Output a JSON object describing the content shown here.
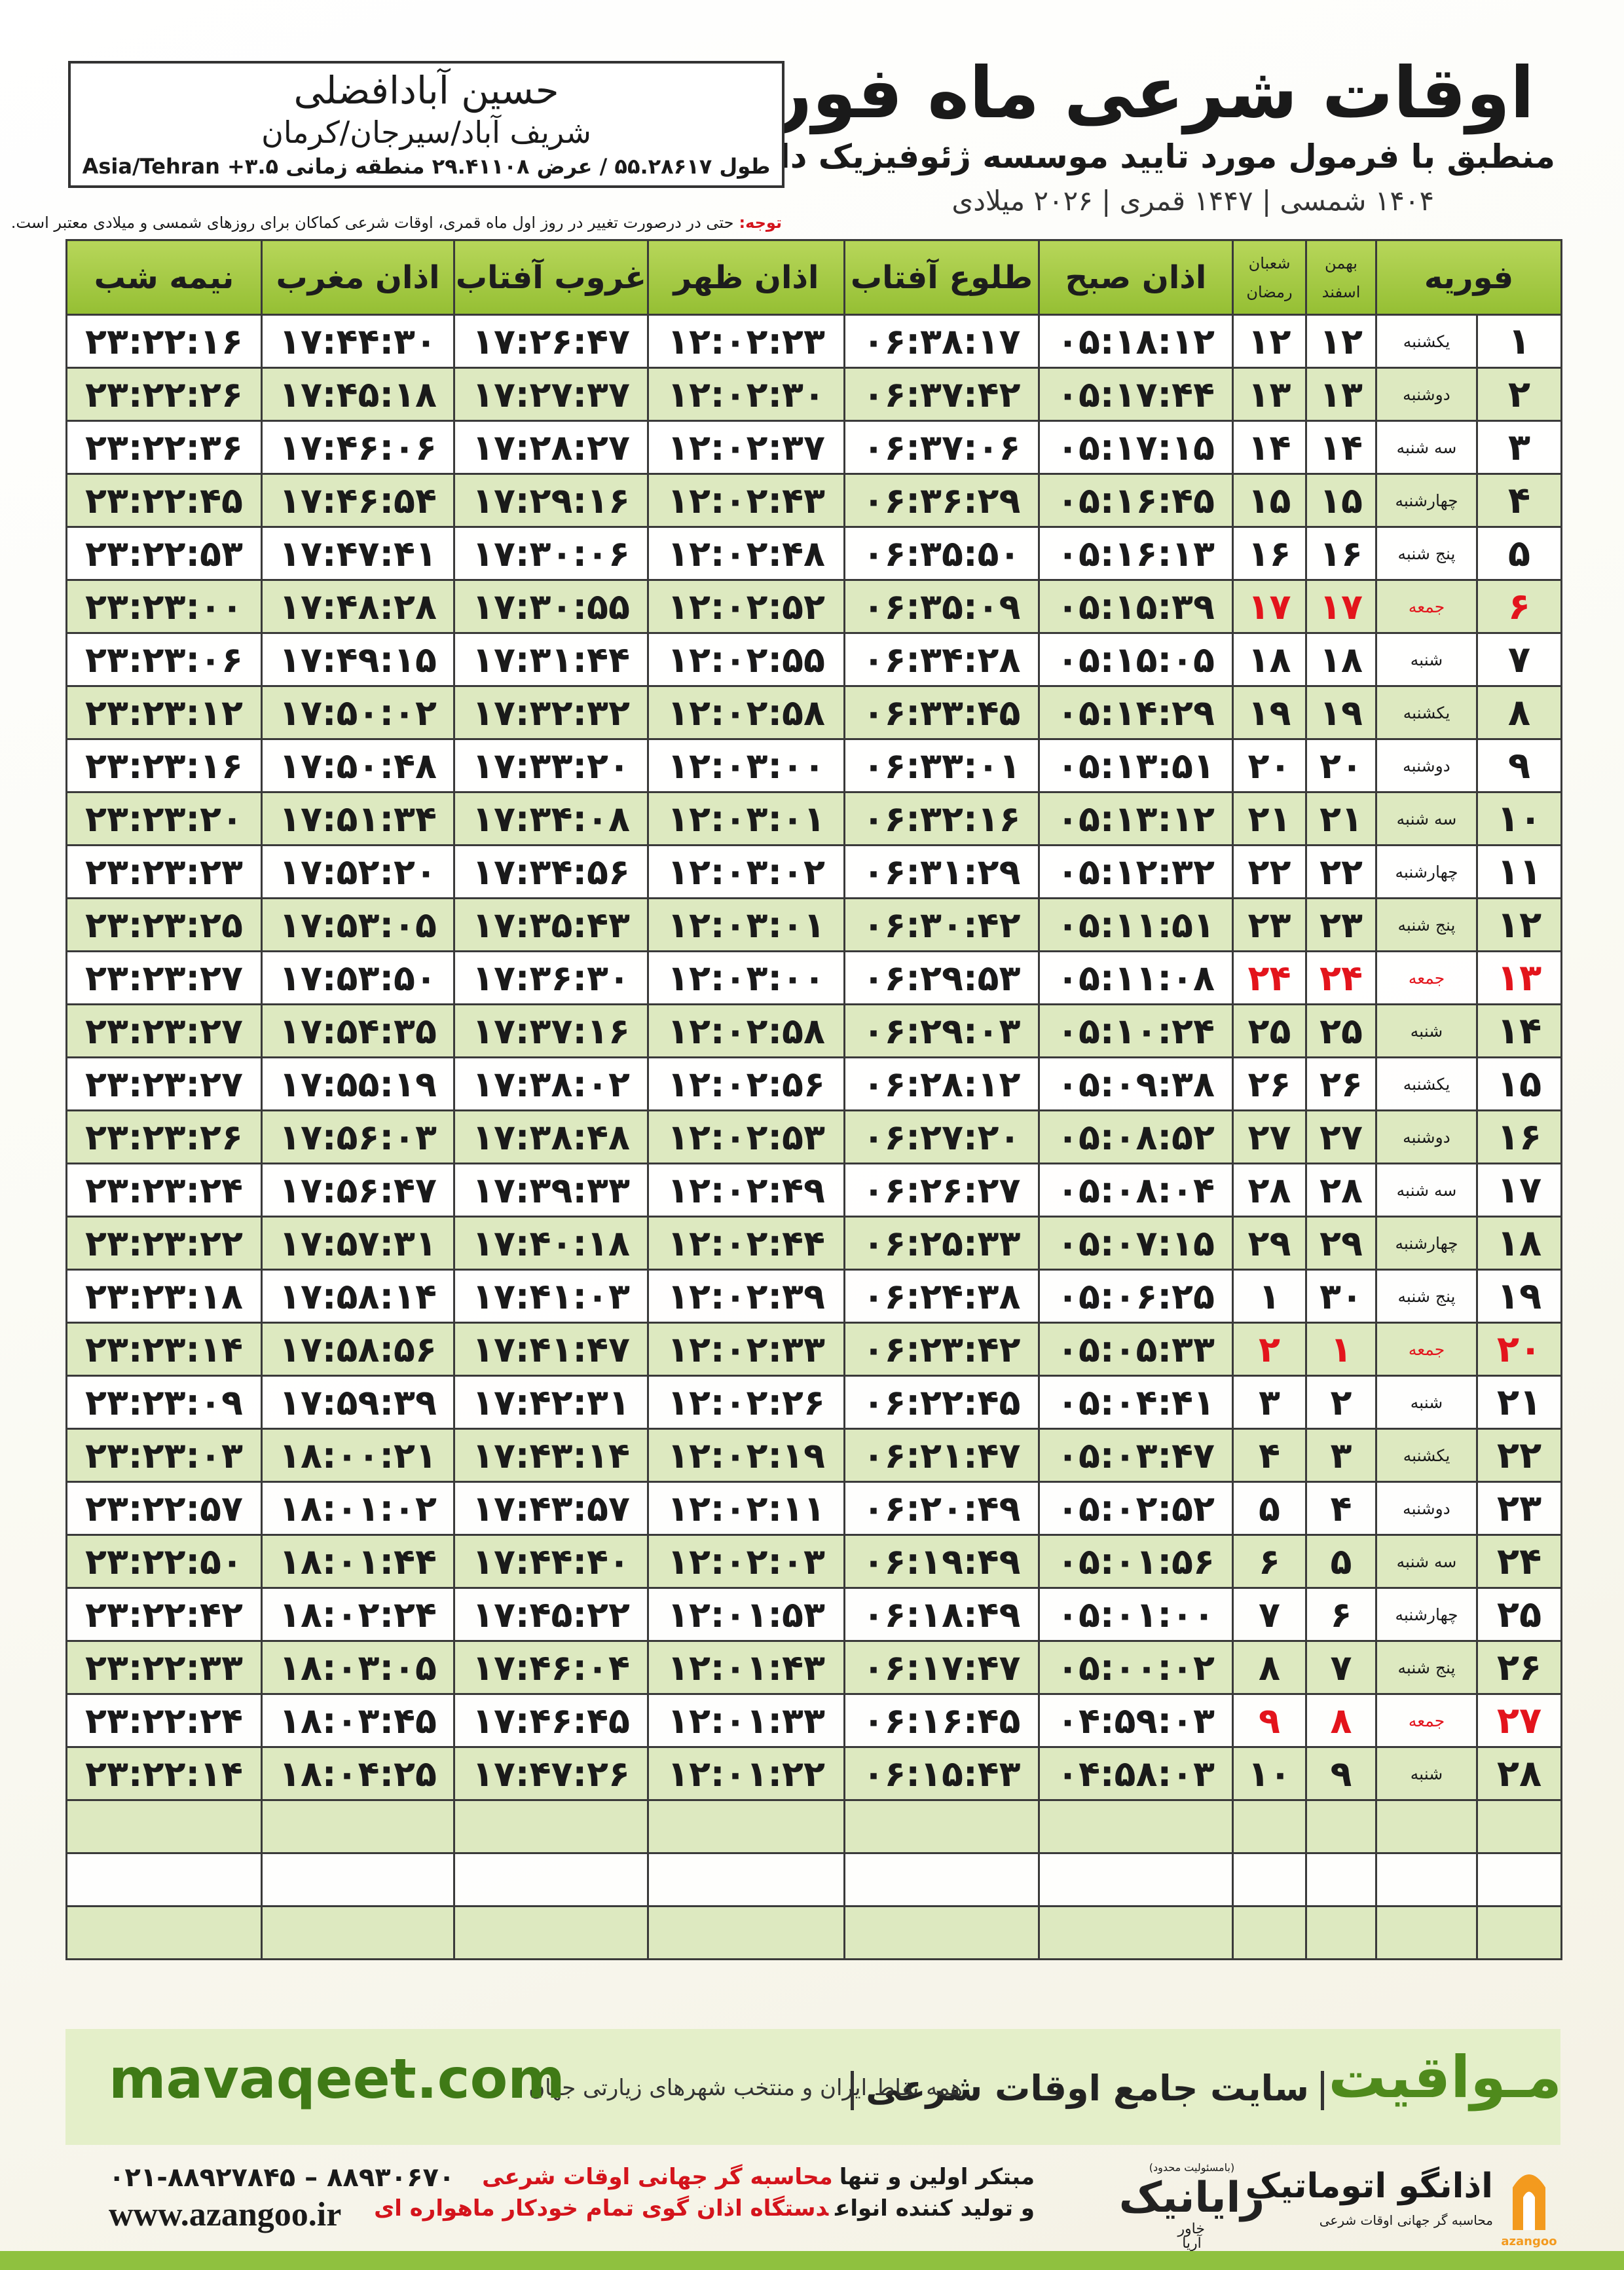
{
  "header": {
    "title": "اوقات شرعی ماه فوریه",
    "subtitle": "منطبق با فرمول مورد تایید موسسه ژئوفیزیک دانشگاه تهران",
    "dates": "۱۴۰۴ شمسی | ۱۴۴۷ قمری | ۲۰۲۶ میلادی"
  },
  "location": {
    "name": "حسین آبادافضلی",
    "place": "شریف آباد/سیرجان/کرمان",
    "coords": "طول ۵۵.۲۸۶۱۷ / عرض ۲۹.۴۱۱۰۸ منطقه زمانی ۳.۵+ Asia/Tehran"
  },
  "note": {
    "label": "توجه:",
    "text": "حتی در درصورت تغییر در روز اول ماه قمری، اوقات شرعی کماکان برای روزهای شمسی و میلادی معتبر است."
  },
  "table": {
    "columns": [
      "فوریه",
      [
        "بهمن",
        "اسفند"
      ],
      [
        "شعبان",
        "رمضان"
      ],
      "اذان صبح",
      "طلوع آفتاب",
      "اذان ظهر",
      "غروب آفتاب",
      "اذان مغرب",
      "نیمه شب"
    ],
    "rows": [
      {
        "cells": [
          "۱",
          "یکشنبه",
          "۱۲",
          "۱۲",
          "۰۵:۱۸:۱۲",
          "۰۶:۳۸:۱۷",
          "۱۲:۰۲:۲۳",
          "۱۷:۲۶:۴۷",
          "۱۷:۴۴:۳۰",
          "۲۳:۲۲:۱۶"
        ]
      },
      {
        "cells": [
          "۲",
          "دوشنبه",
          "۱۳",
          "۱۳",
          "۰۵:۱۷:۴۴",
          "۰۶:۳۷:۴۲",
          "۱۲:۰۲:۳۰",
          "۱۷:۲۷:۳۷",
          "۱۷:۴۵:۱۸",
          "۲۳:۲۲:۲۶"
        ]
      },
      {
        "cells": [
          "۳",
          "سه شنبه",
          "۱۴",
          "۱۴",
          "۰۵:۱۷:۱۵",
          "۰۶:۳۷:۰۶",
          "۱۲:۰۲:۳۷",
          "۱۷:۲۸:۲۷",
          "۱۷:۴۶:۰۶",
          "۲۳:۲۲:۳۶"
        ]
      },
      {
        "cells": [
          "۴",
          "چهارشنبه",
          "۱۵",
          "۱۵",
          "۰۵:۱۶:۴۵",
          "۰۶:۳۶:۲۹",
          "۱۲:۰۲:۴۳",
          "۱۷:۲۹:۱۶",
          "۱۷:۴۶:۵۴",
          "۲۳:۲۲:۴۵"
        ]
      },
      {
        "cells": [
          "۵",
          "پنج شنبه",
          "۱۶",
          "۱۶",
          "۰۵:۱۶:۱۳",
          "۰۶:۳۵:۵۰",
          "۱۲:۰۲:۴۸",
          "۱۷:۳۰:۰۶",
          "۱۷:۴۷:۴۱",
          "۲۳:۲۲:۵۳"
        ]
      },
      {
        "cells": [
          "۶",
          "جمعه",
          "۱۷",
          "۱۷",
          "۰۵:۱۵:۳۹",
          "۰۶:۳۵:۰۹",
          "۱۲:۰۲:۵۲",
          "۱۷:۳۰:۵۵",
          "۱۷:۴۸:۲۸",
          "۲۳:۲۳:۰۰"
        ],
        "color": "#e3141c"
      },
      {
        "cells": [
          "۷",
          "شنبه",
          "۱۸",
          "۱۸",
          "۰۵:۱۵:۰۵",
          "۰۶:۳۴:۲۸",
          "۱۲:۰۲:۵۵",
          "۱۷:۳۱:۴۴",
          "۱۷:۴۹:۱۵",
          "۲۳:۲۳:۰۶"
        ]
      },
      {
        "cells": [
          "۸",
          "یکشنبه",
          "۱۹",
          "۱۹",
          "۰۵:۱۴:۲۹",
          "۰۶:۳۳:۴۵",
          "۱۲:۰۲:۵۸",
          "۱۷:۳۲:۳۲",
          "۱۷:۵۰:۰۲",
          "۲۳:۲۳:۱۲"
        ]
      },
      {
        "cells": [
          "۹",
          "دوشنبه",
          "۲۰",
          "۲۰",
          "۰۵:۱۳:۵۱",
          "۰۶:۳۳:۰۱",
          "۱۲:۰۳:۰۰",
          "۱۷:۳۳:۲۰",
          "۱۷:۵۰:۴۸",
          "۲۳:۲۳:۱۶"
        ]
      },
      {
        "cells": [
          "۱۰",
          "سه شنبه",
          "۲۱",
          "۲۱",
          "۰۵:۱۳:۱۲",
          "۰۶:۳۲:۱۶",
          "۱۲:۰۳:۰۱",
          "۱۷:۳۴:۰۸",
          "۱۷:۵۱:۳۴",
          "۲۳:۲۳:۲۰"
        ]
      },
      {
        "cells": [
          "۱۱",
          "چهارشنبه",
          "۲۲",
          "۲۲",
          "۰۵:۱۲:۳۲",
          "۰۶:۳۱:۲۹",
          "۱۲:۰۳:۰۲",
          "۱۷:۳۴:۵۶",
          "۱۷:۵۲:۲۰",
          "۲۳:۲۳:۲۳"
        ]
      },
      {
        "cells": [
          "۱۲",
          "پنج شنبه",
          "۲۳",
          "۲۳",
          "۰۵:۱۱:۵۱",
          "۰۶:۳۰:۴۲",
          "۱۲:۰۳:۰۱",
          "۱۷:۳۵:۴۳",
          "۱۷:۵۳:۰۵",
          "۲۳:۲۳:۲۵"
        ]
      },
      {
        "cells": [
          "۱۳",
          "جمعه",
          "۲۴",
          "۲۴",
          "۰۵:۱۱:۰۸",
          "۰۶:۲۹:۵۳",
          "۱۲:۰۳:۰۰",
          "۱۷:۳۶:۳۰",
          "۱۷:۵۳:۵۰",
          "۲۳:۲۳:۲۷"
        ],
        "color": "#e3141c"
      },
      {
        "cells": [
          "۱۴",
          "شنبه",
          "۲۵",
          "۲۵",
          "۰۵:۱۰:۲۴",
          "۰۶:۲۹:۰۳",
          "۱۲:۰۲:۵۸",
          "۱۷:۳۷:۱۶",
          "۱۷:۵۴:۳۵",
          "۲۳:۲۳:۲۷"
        ]
      },
      {
        "cells": [
          "۱۵",
          "یکشنبه",
          "۲۶",
          "۲۶",
          "۰۵:۰۹:۳۸",
          "۰۶:۲۸:۱۲",
          "۱۲:۰۲:۵۶",
          "۱۷:۳۸:۰۲",
          "۱۷:۵۵:۱۹",
          "۲۳:۲۳:۲۷"
        ]
      },
      {
        "cells": [
          "۱۶",
          "دوشنبه",
          "۲۷",
          "۲۷",
          "۰۵:۰۸:۵۲",
          "۰۶:۲۷:۲۰",
          "۱۲:۰۲:۵۳",
          "۱۷:۳۸:۴۸",
          "۱۷:۵۶:۰۳",
          "۲۳:۲۳:۲۶"
        ]
      },
      {
        "cells": [
          "۱۷",
          "سه شنبه",
          "۲۸",
          "۲۸",
          "۰۵:۰۸:۰۴",
          "۰۶:۲۶:۲۷",
          "۱۲:۰۲:۴۹",
          "۱۷:۳۹:۳۳",
          "۱۷:۵۶:۴۷",
          "۲۳:۲۳:۲۴"
        ]
      },
      {
        "cells": [
          "۱۸",
          "چهارشنبه",
          "۲۹",
          "۲۹",
          "۰۵:۰۷:۱۵",
          "۰۶:۲۵:۳۳",
          "۱۲:۰۲:۴۴",
          "۱۷:۴۰:۱۸",
          "۱۷:۵۷:۳۱",
          "۲۳:۲۳:۲۲"
        ]
      },
      {
        "cells": [
          "۱۹",
          "پنج شنبه",
          "۳۰",
          "۱",
          "۰۵:۰۶:۲۵",
          "۰۶:۲۴:۳۸",
          "۱۲:۰۲:۳۹",
          "۱۷:۴۱:۰۳",
          "۱۷:۵۸:۱۴",
          "۲۳:۲۳:۱۸"
        ]
      },
      {
        "cells": [
          "۲۰",
          "جمعه",
          "۱",
          "۲",
          "۰۵:۰۵:۳۳",
          "۰۶:۲۳:۴۲",
          "۱۲:۰۲:۳۳",
          "۱۷:۴۱:۴۷",
          "۱۷:۵۸:۵۶",
          "۲۳:۲۳:۱۴"
        ],
        "color": "#e3141c"
      },
      {
        "cells": [
          "۲۱",
          "شنبه",
          "۲",
          "۳",
          "۰۵:۰۴:۴۱",
          "۰۶:۲۲:۴۵",
          "۱۲:۰۲:۲۶",
          "۱۷:۴۲:۳۱",
          "۱۷:۵۹:۳۹",
          "۲۳:۲۳:۰۹"
        ]
      },
      {
        "cells": [
          "۲۲",
          "یکشنبه",
          "۳",
          "۴",
          "۰۵:۰۳:۴۷",
          "۰۶:۲۱:۴۷",
          "۱۲:۰۲:۱۹",
          "۱۷:۴۳:۱۴",
          "۱۸:۰۰:۲۱",
          "۲۳:۲۳:۰۳"
        ]
      },
      {
        "cells": [
          "۲۳",
          "دوشنبه",
          "۴",
          "۵",
          "۰۵:۰۲:۵۲",
          "۰۶:۲۰:۴۹",
          "۱۲:۰۲:۱۱",
          "۱۷:۴۳:۵۷",
          "۱۸:۰۱:۰۲",
          "۲۳:۲۲:۵۷"
        ]
      },
      {
        "cells": [
          "۲۴",
          "سه شنبه",
          "۵",
          "۶",
          "۰۵:۰۱:۵۶",
          "۰۶:۱۹:۴۹",
          "۱۲:۰۲:۰۳",
          "۱۷:۴۴:۴۰",
          "۱۸:۰۱:۴۴",
          "۲۳:۲۲:۵۰"
        ]
      },
      {
        "cells": [
          "۲۵",
          "چهارشنبه",
          "۶",
          "۷",
          "۰۵:۰۱:۰۰",
          "۰۶:۱۸:۴۹",
          "۱۲:۰۱:۵۳",
          "۱۷:۴۵:۲۲",
          "۱۸:۰۲:۲۴",
          "۲۳:۲۲:۴۲"
        ]
      },
      {
        "cells": [
          "۲۶",
          "پنج شنبه",
          "۷",
          "۸",
          "۰۵:۰۰:۰۲",
          "۰۶:۱۷:۴۷",
          "۱۲:۰۱:۴۳",
          "۱۷:۴۶:۰۴",
          "۱۸:۰۳:۰۵",
          "۲۳:۲۲:۳۳"
        ]
      },
      {
        "cells": [
          "۲۷",
          "جمعه",
          "۸",
          "۹",
          "۰۴:۵۹:۰۳",
          "۰۶:۱۶:۴۵",
          "۱۲:۰۱:۳۳",
          "۱۷:۴۶:۴۵",
          "۱۸:۰۳:۴۵",
          "۲۳:۲۲:۲۴"
        ],
        "color": "#e3141c"
      },
      {
        "cells": [
          "۲۸",
          "شنبه",
          "۹",
          "۱۰",
          "۰۴:۵۸:۰۳",
          "۰۶:۱۵:۴۳",
          "۱۲:۰۱:۲۲",
          "۱۷:۴۷:۲۶",
          "۱۸:۰۴:۲۵",
          "۲۳:۲۲:۱۴"
        ]
      }
    ]
  },
  "footer": {
    "brand": "مـواقیت",
    "slogan": "سایت جامع اوقات شرعی",
    "areas": "همه نقاط ایران و منتخب شهرهای زیارتی جهان",
    "site": "mavaqeet.com"
  },
  "contact": {
    "phone": "۰۲۱-۸۸۹۲۷۸۴۵ – ۸۸۹۳۰۶۷۰",
    "web": "www.azangoo.ir",
    "line1": [
      "مبتکر اولین و تنها",
      "محاسبه گر جهانی اوقات شرعی"
    ],
    "line2": [
      "و تولید کننده انواع",
      "دستگاه اذان گوی تمام خودکار ماهواره ای"
    ],
    "rayanik": {
      "note": "(بامسئولیت محدود)",
      "name": "رایانیک",
      "sub": "خاور آریا"
    },
    "azangoo": {
      "name": "اذانگو اتوماتیک",
      "tagline": "محاسبه گر جهانی اوقات شرعی",
      "latin": "azangoo"
    }
  }
}
